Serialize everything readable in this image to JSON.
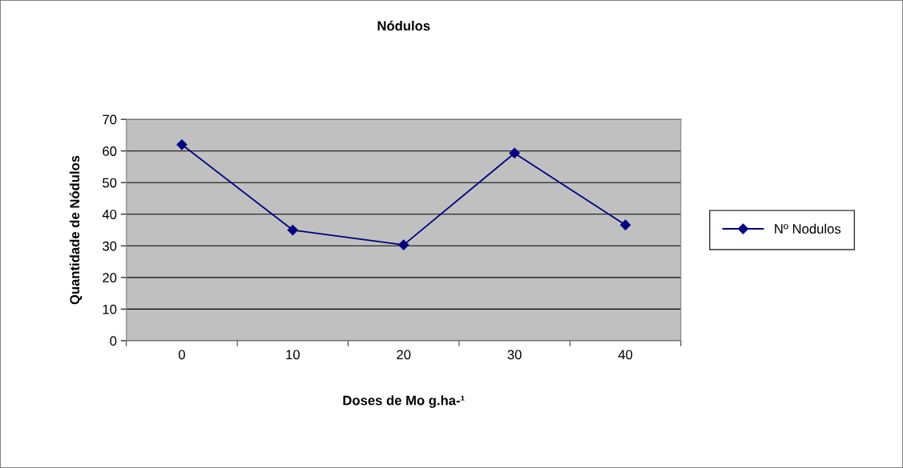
{
  "chart_data": {
    "type": "line",
    "title": "Nódulos",
    "xlabel": "Doses de Mo g.ha-¹",
    "ylabel": "Quantidade de Nódulos",
    "categories": [
      "0",
      "10",
      "20",
      "30",
      "40"
    ],
    "series": [
      {
        "name": "Nº Nodulos",
        "color": "#000080",
        "values": [
          62,
          35,
          30.3,
          59.3,
          36.6
        ]
      }
    ],
    "ylim": [
      0,
      70
    ],
    "yticks": [
      0,
      10,
      20,
      30,
      40,
      50,
      60,
      70
    ],
    "grid": "y",
    "legend": "right",
    "marker": "diamond",
    "line_style": "solid"
  }
}
